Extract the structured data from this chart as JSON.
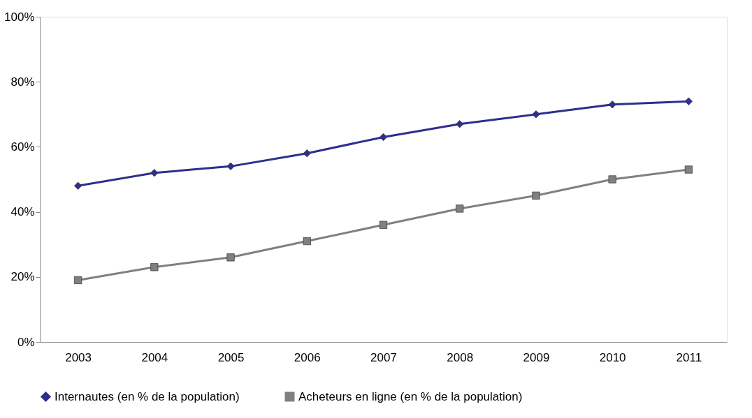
{
  "chart_data": {
    "type": "line",
    "categories": [
      "2003",
      "2004",
      "2005",
      "2006",
      "2007",
      "2008",
      "2009",
      "2010",
      "2011"
    ],
    "series": [
      {
        "name": "Internautes (en % de la population)",
        "color": "#2e2e8f",
        "marker": "diamond",
        "values": [
          48,
          52,
          54,
          58,
          63,
          67,
          70,
          73,
          74
        ]
      },
      {
        "name": "Acheteurs en ligne (en % de la population)",
        "color": "#808080",
        "marker": "square",
        "values": [
          19,
          23,
          26,
          31,
          36,
          41,
          45,
          50,
          53
        ]
      }
    ],
    "ylim": [
      0,
      100
    ],
    "yticks": [
      {
        "value": 0,
        "label": "0%"
      },
      {
        "value": 20,
        "label": "20%"
      },
      {
        "value": 40,
        "label": "40%"
      },
      {
        "value": 60,
        "label": "60%"
      },
      {
        "value": 80,
        "label": "80%"
      },
      {
        "value": 100,
        "label": "100%"
      }
    ],
    "grid": false,
    "legend": "bottom",
    "line_style": "solid"
  }
}
